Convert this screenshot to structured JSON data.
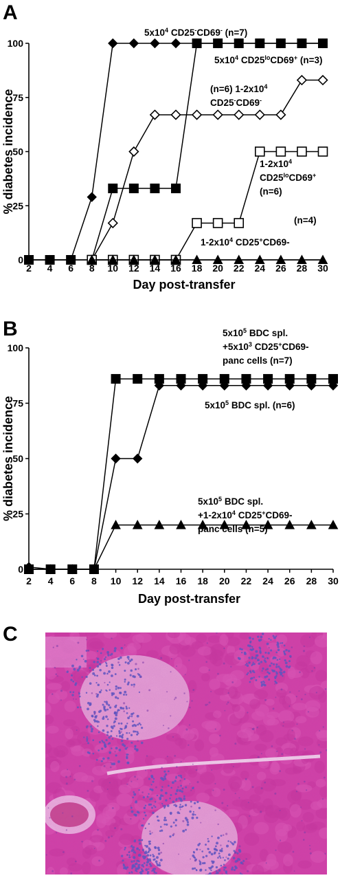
{
  "panels": [
    {
      "letter": "A"
    },
    {
      "letter": "B"
    },
    {
      "letter": "C"
    }
  ],
  "chart_data": [
    {
      "type": "line",
      "panel": "A",
      "ylabel": "% diabetes incidence",
      "xlabel": "Day post-transfer",
      "xticks": [
        2,
        4,
        6,
        8,
        10,
        12,
        14,
        16,
        18,
        20,
        22,
        24,
        26,
        28,
        30
      ],
      "yticks": [
        0,
        25,
        50,
        75,
        100
      ],
      "ylim": [
        0,
        100
      ],
      "xlim": [
        2,
        30
      ],
      "series": [
        {
          "name": "5x10^4 CD25-CD69- (n=7)",
          "marker": "diamond-filled",
          "x": [
            2,
            4,
            6,
            8,
            10,
            12,
            14,
            16,
            18,
            20,
            22,
            24,
            26,
            28,
            30
          ],
          "y": [
            0,
            0,
            0,
            29,
            100,
            100,
            100,
            100,
            100,
            100,
            100,
            100,
            100,
            100,
            100
          ]
        },
        {
          "name": "5x10^4 CD25loCD69+ (n=3)",
          "marker": "square-filled",
          "x": [
            2,
            4,
            6,
            8,
            10,
            12,
            14,
            16,
            18,
            20,
            22,
            24,
            26,
            28,
            30
          ],
          "y": [
            0,
            0,
            0,
            0,
            33,
            33,
            33,
            33,
            100,
            100,
            100,
            100,
            100,
            100,
            100
          ]
        },
        {
          "name": "(n=6) 1-2x10^4 CD25-CD69-",
          "marker": "diamond-open",
          "x": [
            8,
            10,
            12,
            14,
            16,
            18,
            20,
            22,
            24,
            26,
            28,
            30
          ],
          "y": [
            0,
            17,
            50,
            67,
            67,
            67,
            67,
            67,
            67,
            67,
            83,
            83
          ]
        },
        {
          "name": "1-2x10^4 CD25loCD69+ (n=6)",
          "marker": "square-open",
          "x": [
            8,
            10,
            12,
            14,
            16,
            18,
            20,
            22,
            24,
            26,
            28,
            30
          ],
          "y": [
            0,
            0,
            0,
            0,
            0,
            17,
            17,
            17,
            50,
            50,
            50,
            50
          ]
        },
        {
          "name": "(n=4) 1-2x10^4 CD25+CD69-",
          "marker": "triangle-filled",
          "x": [
            8,
            10,
            12,
            14,
            16,
            18,
            20,
            22,
            24,
            26,
            28,
            30
          ],
          "y": [
            0,
            0,
            0,
            0,
            0,
            0,
            0,
            0,
            0,
            0,
            0,
            0
          ]
        }
      ],
      "annotations": [
        {
          "id": "a1",
          "lines": [
            [
              "5x10",
              "4",
              " CD25",
              "-",
              "CD69",
              "-",
              " (n=7)"
            ]
          ]
        },
        {
          "id": "a2",
          "lines": [
            [
              "5x10",
              "4",
              " CD25",
              "lo",
              "CD69",
              "+",
              " (n=3)"
            ]
          ]
        },
        {
          "id": "a3",
          "lines": [
            [
              "(n=6) 1-2x10",
              "4"
            ],
            [
              "CD25",
              "-",
              "CD69",
              "-"
            ]
          ]
        },
        {
          "id": "a4",
          "lines": [
            [
              "1-2x10",
              "4"
            ],
            [
              "CD25",
              "lo",
              "CD69",
              "+"
            ],
            [
              "(n=6)"
            ]
          ]
        },
        {
          "id": "a5",
          "lines": [
            [
              "(n=4)"
            ]
          ]
        },
        {
          "id": "a6",
          "lines": [
            [
              "1-2x10",
              "4",
              " CD25",
              "+",
              "CD69-"
            ]
          ]
        }
      ]
    },
    {
      "type": "line",
      "panel": "B",
      "ylabel": "% diabetes incidence",
      "xlabel": "Day post-transfer",
      "xticks": [
        2,
        4,
        6,
        8,
        10,
        12,
        14,
        16,
        18,
        20,
        22,
        24,
        26,
        28,
        30
      ],
      "yticks": [
        0,
        25,
        50,
        75,
        100
      ],
      "ylim": [
        0,
        100
      ],
      "xlim": [
        2,
        30
      ],
      "series": [
        {
          "name": "5x10^5 BDC spl. +5x10^3 CD25+CD69- panc cells (n=7)",
          "marker": "square-filled",
          "x": [
            2,
            4,
            6,
            8,
            10,
            12,
            14,
            16,
            18,
            20,
            22,
            24,
            26,
            28,
            30
          ],
          "y": [
            0,
            0,
            0,
            0,
            86,
            86,
            86,
            86,
            86,
            86,
            86,
            86,
            86,
            86,
            86
          ]
        },
        {
          "name": "5x10^5 BDC spl. (n=6)",
          "marker": "diamond-filled",
          "x": [
            2,
            4,
            6,
            8,
            10,
            12,
            14,
            16,
            18,
            20,
            22,
            24,
            26,
            28,
            30
          ],
          "y": [
            1,
            0,
            0,
            0,
            50,
            50,
            83,
            83,
            83,
            83,
            83,
            83,
            83,
            83,
            83
          ]
        },
        {
          "name": "5x10^5 BDC spl. +1-2x10^4 CD25+CD69- panc cells (n=5)",
          "marker": "triangle-filled",
          "x": [
            2,
            4,
            6,
            8,
            10,
            12,
            14,
            16,
            18,
            20,
            22,
            24,
            26,
            28,
            30
          ],
          "y": [
            0,
            0,
            0,
            0,
            20,
            20,
            20,
            20,
            20,
            20,
            20,
            20,
            20,
            20,
            20
          ]
        }
      ],
      "annotations": [
        {
          "id": "b1",
          "lines": [
            [
              "5x10",
              "5",
              " BDC spl."
            ],
            [
              "+5x10",
              "3",
              " CD25",
              "+",
              "CD69-"
            ],
            [
              "panc cells (n=7)"
            ]
          ]
        },
        {
          "id": "b2",
          "lines": [
            [
              "5x10",
              "5",
              " BDC spl.  (n=6)"
            ]
          ]
        },
        {
          "id": "b3",
          "lines": [
            [
              "5x10",
              "5",
              " BDC spl."
            ],
            [
              "+1-2x10",
              "4",
              " CD25",
              "+",
              "CD69-"
            ],
            [
              "panc cells (n=5)"
            ]
          ]
        }
      ]
    }
  ],
  "histology": {
    "colors": {
      "base": "#d23fa6",
      "light": "#e58ad0",
      "islet": "#e7a6d8",
      "nuclei": "#5a55c0",
      "pale": "#f1c8ea"
    }
  }
}
